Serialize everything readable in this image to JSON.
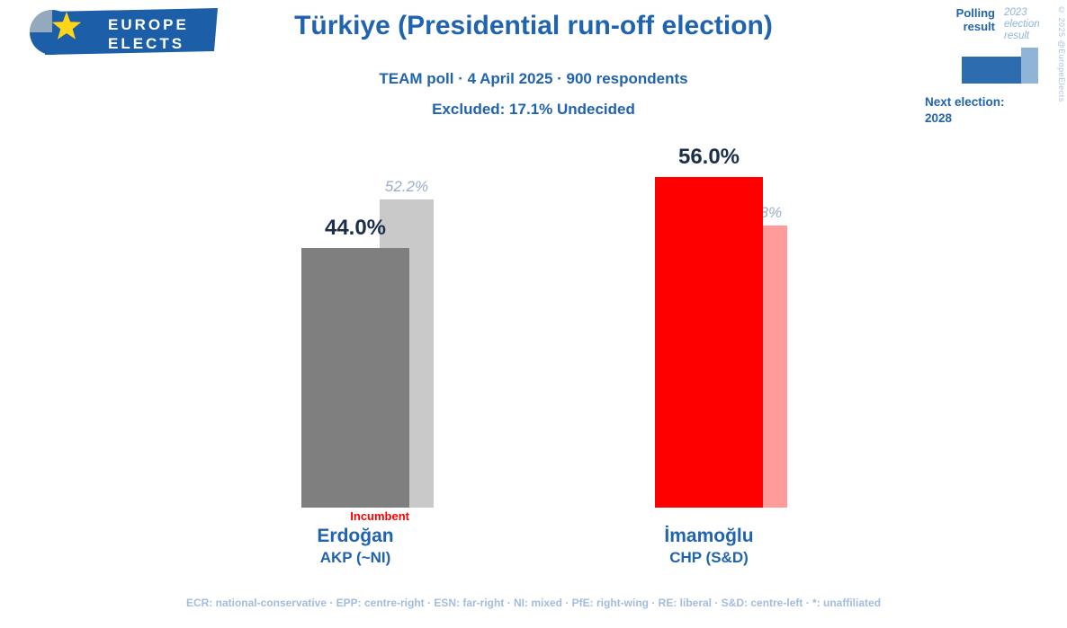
{
  "header": {
    "logo": {
      "line1": "EUROPE",
      "line2": "ELECTS"
    },
    "title": "Türkiye (Presidential run-off election)",
    "subtitle": "TEAM poll · 4 April 2025 · 900 respondents",
    "excluded": "Excluded: 17.1% Undecided"
  },
  "legend": {
    "polling_label": "Polling result",
    "election_label": "2023 election result",
    "next_election_label": "Next election:",
    "next_election_year": "2028",
    "copyright": "© 2025 @EuropeElects",
    "poll_color": "#2e6cb0",
    "election_color": "#8fb4d8"
  },
  "colors": {
    "accent_blue": "#2063ae",
    "light_blue_text": "#a3bcde",
    "value_dark": "#1b2f4b",
    "incumbent_red": "#ff0000"
  },
  "chart_data": {
    "type": "bar",
    "title": "Türkiye (Presidential run-off election)",
    "categories": [
      "Erdoğan",
      "İmamoğlu"
    ],
    "series": [
      {
        "name": "Polling result",
        "values": [
          44.0,
          56.0
        ]
      },
      {
        "name": "2023 election result",
        "values": [
          52.2,
          47.8
        ]
      }
    ],
    "ylim": [
      0,
      60
    ],
    "grid": false,
    "legend_position": "top-right",
    "candidates": [
      {
        "name": "Erdoğan",
        "party": "AKP (~NI)",
        "poll": 44.0,
        "poll_label": "44.0%",
        "election": 52.2,
        "election_label": "52.2%",
        "poll_color": "#7f7f7f",
        "election_color": "#c9c9c9",
        "note": "Incumbent"
      },
      {
        "name": "İmamoğlu",
        "party": "CHP (S&D)",
        "poll": 56.0,
        "poll_label": "56.0%",
        "election": 47.8,
        "election_label": "47.8%",
        "poll_color": "#fe0000",
        "election_color": "#ff9b9b",
        "note": ""
      }
    ]
  },
  "footer": {
    "legend_text": "ECR: national-conservative · EPP: centre-right · ESN: far-right · NI: mixed · PfE: right-wing · RE: liberal · S&D: centre-left · *: unaffiliated"
  }
}
